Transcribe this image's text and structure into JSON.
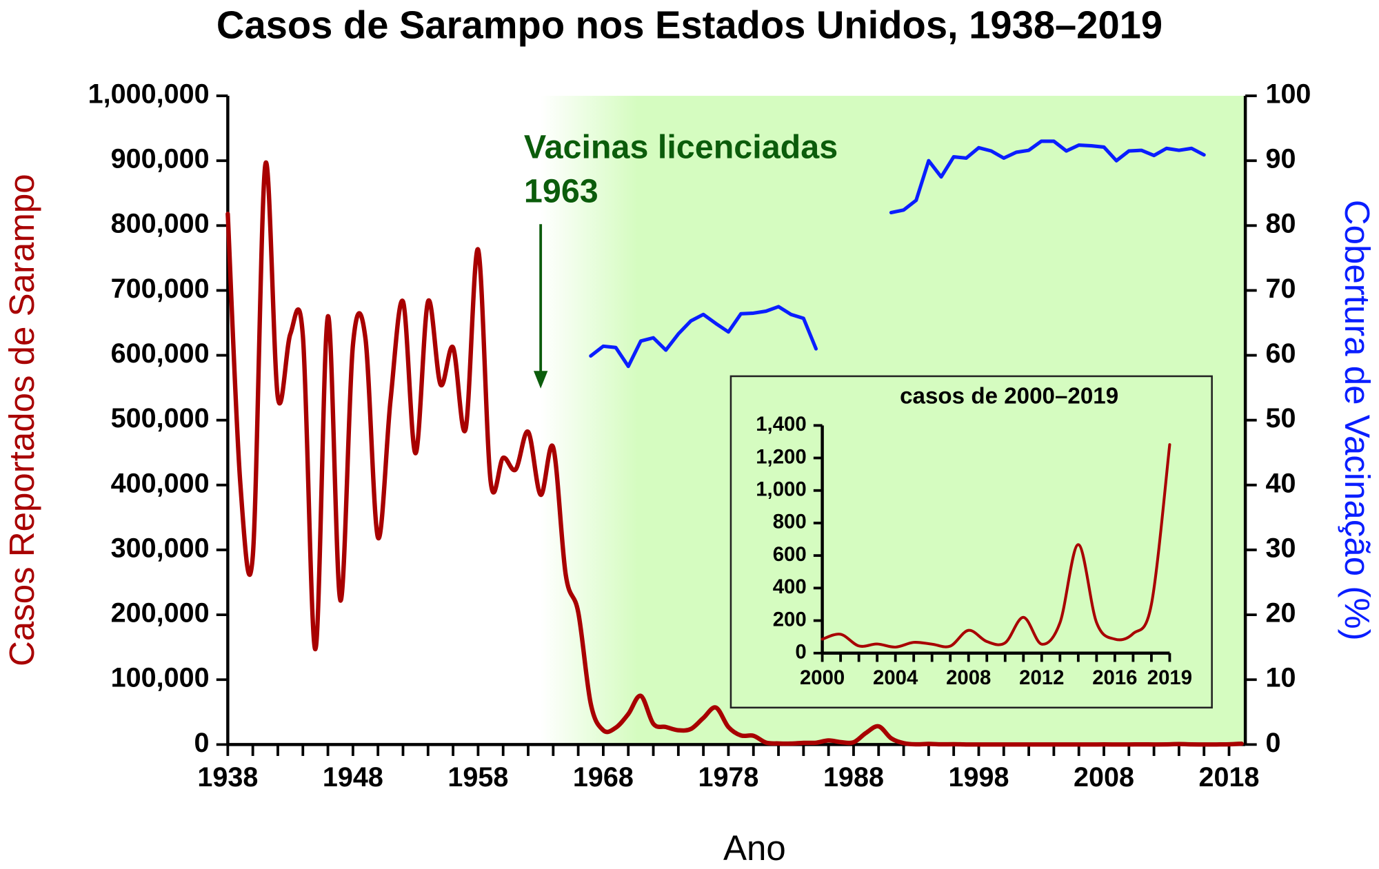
{
  "chart_data": [
    {
      "type": "line",
      "title": "Casos de Sarampo nos Estados Unidos, 1938–2019",
      "xlabel": "Ano",
      "ylabel": "Casos Reportados de Sarampo",
      "y2label": "Cobertura de Vacinação (%)",
      "x": [
        1938,
        1939,
        1940,
        1941,
        1942,
        1943,
        1944,
        1945,
        1946,
        1947,
        1948,
        1949,
        1950,
        1951,
        1952,
        1953,
        1954,
        1955,
        1956,
        1957,
        1958,
        1959,
        1960,
        1961,
        1962,
        1963,
        1964,
        1965,
        1966,
        1967,
        1968,
        1969,
        1970,
        1971,
        1972,
        1973,
        1974,
        1975,
        1976,
        1977,
        1978,
        1979,
        1980,
        1981,
        1982,
        1983,
        1984,
        1985,
        1986,
        1987,
        1988,
        1989,
        1990,
        1991,
        1992,
        1993,
        1994,
        1995,
        1996,
        1997,
        1998,
        1999,
        2000,
        2001,
        2002,
        2003,
        2004,
        2005,
        2006,
        2007,
        2008,
        2009,
        2010,
        2011,
        2012,
        2013,
        2014,
        2015,
        2016,
        2017,
        2018,
        2019
      ],
      "series": [
        {
          "color": "#a80000",
          "smooth": true,
          "values": [
            818000,
            403000,
            291000,
            894000,
            535000,
            633000,
            630000,
            147000,
            660000,
            222000,
            616000,
            626000,
            319000,
            530000,
            683000,
            449000,
            683000,
            555000,
            612000,
            486000,
            763000,
            406000,
            442000,
            424000,
            482000,
            385000,
            458000,
            262000,
            204000,
            63000,
            22000,
            26000,
            47000,
            75000,
            32000,
            27000,
            22000,
            24000,
            41000,
            57000,
            27000,
            14000,
            13500,
            3000,
            1700,
            1500,
            2600,
            2800,
            6300,
            3700,
            3400,
            18000,
            28000,
            9600,
            2200,
            300,
            1000,
            300,
            500,
            100,
            100,
            100,
            86,
            116,
            44,
            56,
            37,
            66,
            55,
            43,
            140,
            71,
            63,
            220,
            55,
            187,
            667,
            188,
            86,
            120,
            300,
            1282
          ]
        },
        {
          "color": "#0a1eff",
          "axis": "y2",
          "values": [
            null,
            null,
            null,
            null,
            null,
            null,
            null,
            null,
            null,
            null,
            null,
            null,
            null,
            null,
            null,
            null,
            null,
            null,
            null,
            null,
            null,
            null,
            null,
            null,
            null,
            null,
            null,
            null,
            null,
            59.9,
            61.4,
            61.2,
            58.3,
            62.2,
            62.7,
            60.8,
            63.3,
            65.3,
            66.3,
            64.9,
            63.6,
            66.4,
            66.5,
            66.8,
            67.5,
            66.3,
            65.7,
            61.0,
            null,
            null,
            null,
            null,
            null,
            82.0,
            82.4,
            83.9,
            90.0,
            87.5,
            90.6,
            90.4,
            92.0,
            91.5,
            90.4,
            91.3,
            91.6,
            93.0,
            93.0,
            91.5,
            92.4,
            92.3,
            92.1,
            90.0,
            91.5,
            91.6,
            90.8,
            91.9,
            91.6,
            91.9,
            90.9,
            null,
            null,
            null
          ]
        }
      ],
      "xlim": [
        1938,
        2019.3
      ],
      "xticks": [
        1938,
        1948,
        1958,
        1968,
        1978,
        1988,
        1998,
        2008,
        2018
      ],
      "x_minor_step": 2,
      "ylim": [
        0,
        1000000
      ],
      "yticks": [
        0,
        {
          "value": 100000,
          "label": "100,000"
        },
        {
          "value": 200000,
          "label": "200,000"
        },
        {
          "value": 300000,
          "label": "300,000"
        },
        {
          "value": 400000,
          "label": "400,000"
        },
        {
          "value": 500000,
          "label": "500,000"
        },
        {
          "value": 600000,
          "label": "600,000"
        },
        {
          "value": 700000,
          "label": "700,000"
        },
        {
          "value": 800000,
          "label": "800,000"
        },
        {
          "value": 900000,
          "label": "900,000"
        },
        {
          "value": 1000000,
          "label": "1,000,000"
        }
      ],
      "y2lim": [
        0,
        100
      ],
      "y2ticks": [
        0,
        10,
        20,
        30,
        40,
        50,
        60,
        70,
        80,
        90,
        100
      ],
      "annotation": {
        "lines": [
          "Vacinas licenciadas",
          "1963"
        ],
        "x": 1963,
        "color": "#0b5c0b"
      },
      "shade_color": "#d5fcc0"
    },
    {
      "type": "line",
      "title": "casos de 2000–2019",
      "x": [
        2000,
        2001,
        2002,
        2003,
        2004,
        2005,
        2006,
        2007,
        2008,
        2009,
        2010,
        2011,
        2012,
        2013,
        2014,
        2015,
        2016,
        2017,
        2018,
        2019
      ],
      "series": [
        {
          "color": "#a80000",
          "smooth": true,
          "values": [
            86,
            116,
            44,
            56,
            37,
            66,
            55,
            43,
            140,
            71,
            63,
            220,
            55,
            187,
            667,
            188,
            86,
            120,
            300,
            1282
          ]
        }
      ],
      "xlim": [
        2000,
        2019
      ],
      "xticks": [
        2000,
        2004,
        2008,
        2012,
        2016,
        2019
      ],
      "x_minor_step": 1,
      "ylim": [
        0,
        1400
      ],
      "yticks": [
        0,
        200,
        400,
        600,
        800,
        {
          "value": 1000,
          "label": "1,000"
        },
        {
          "value": 1200,
          "label": "1,200"
        },
        {
          "value": 1400,
          "label": "1,400"
        }
      ]
    }
  ]
}
